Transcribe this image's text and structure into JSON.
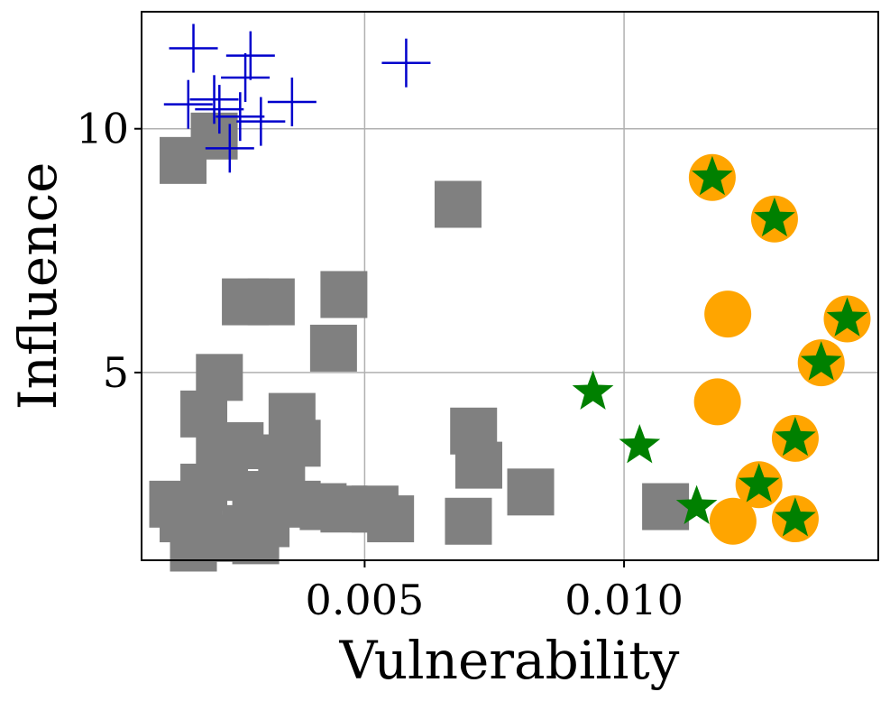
{
  "chart_data": {
    "type": "scatter",
    "title": "",
    "xlabel": "Vulnerability",
    "ylabel": "Influence",
    "xlim": [
      0.0007,
      0.0149
    ],
    "ylim": [
      1.15,
      12.4
    ],
    "x_ticks": [
      {
        "value": 0.005,
        "label": "0.005"
      },
      {
        "value": 0.01,
        "label": "0.010"
      }
    ],
    "y_ticks": [
      {
        "value": 5,
        "label": "5"
      },
      {
        "value": 10,
        "label": "10"
      }
    ],
    "grid": true,
    "series": [
      {
        "name": "Gray squares",
        "marker": "square",
        "color": "#808080",
        "points": [
          [
            0.0015,
            9.35
          ],
          [
            0.0021,
            9.85
          ],
          [
            0.0068,
            8.45
          ],
          [
            0.0046,
            6.6
          ],
          [
            0.0027,
            6.45
          ],
          [
            0.0032,
            6.45
          ],
          [
            0.0044,
            5.5
          ],
          [
            0.0022,
            4.9
          ],
          [
            0.0019,
            4.15
          ],
          [
            0.0036,
            4.1
          ],
          [
            0.0037,
            3.55
          ],
          [
            0.0026,
            3.5
          ],
          [
            0.0034,
            3.25
          ],
          [
            0.0022,
            3.2
          ],
          [
            0.0023,
            2.85
          ],
          [
            0.0019,
            2.65
          ],
          [
            0.0029,
            2.5
          ],
          [
            0.0037,
            2.3
          ],
          [
            0.0042,
            2.25
          ],
          [
            0.0046,
            2.2
          ],
          [
            0.0052,
            2.2
          ],
          [
            0.0055,
            2.0
          ],
          [
            0.0071,
            3.8
          ],
          [
            0.0072,
            3.1
          ],
          [
            0.0082,
            2.55
          ],
          [
            0.007,
            1.95
          ],
          [
            0.0013,
            2.3
          ],
          [
            0.0015,
            2.0
          ],
          [
            0.0018,
            1.75
          ],
          [
            0.0022,
            1.6
          ],
          [
            0.0027,
            1.8
          ],
          [
            0.0031,
            1.9
          ],
          [
            0.0017,
            1.4
          ],
          [
            0.0025,
            1.6
          ],
          [
            0.0029,
            1.55
          ],
          [
            0.0108,
            2.25
          ]
        ]
      },
      {
        "name": "Blue crosses",
        "marker": "plus",
        "color": "#0000cc",
        "points": [
          [
            0.0017,
            11.65
          ],
          [
            0.0028,
            11.5
          ],
          [
            0.0027,
            11.05
          ],
          [
            0.0058,
            11.35
          ],
          [
            0.0021,
            10.6
          ],
          [
            0.0016,
            10.5
          ],
          [
            0.0022,
            10.4
          ],
          [
            0.0036,
            10.55
          ],
          [
            0.0026,
            10.25
          ],
          [
            0.003,
            10.15
          ],
          [
            0.0024,
            9.6
          ]
        ]
      },
      {
        "name": "Orange circles",
        "marker": "circle",
        "color": "#ffa500",
        "points": [
          [
            0.0117,
            9.0
          ],
          [
            0.0129,
            8.15
          ],
          [
            0.012,
            6.2
          ],
          [
            0.0143,
            6.1
          ],
          [
            0.0138,
            5.2
          ],
          [
            0.0118,
            4.4
          ],
          [
            0.0133,
            3.65
          ],
          [
            0.0126,
            2.7
          ],
          [
            0.0121,
            1.95
          ],
          [
            0.0133,
            2.0
          ]
        ]
      },
      {
        "name": "Green stars",
        "marker": "star",
        "color": "#008000",
        "points": [
          [
            0.0117,
            9.0
          ],
          [
            0.0129,
            8.15
          ],
          [
            0.0143,
            6.1
          ],
          [
            0.0138,
            5.2
          ],
          [
            0.0133,
            3.65
          ],
          [
            0.0126,
            2.7
          ],
          [
            0.0133,
            2.0
          ],
          [
            0.0094,
            4.6
          ],
          [
            0.0103,
            3.5
          ],
          [
            0.0114,
            2.25
          ]
        ]
      }
    ]
  }
}
